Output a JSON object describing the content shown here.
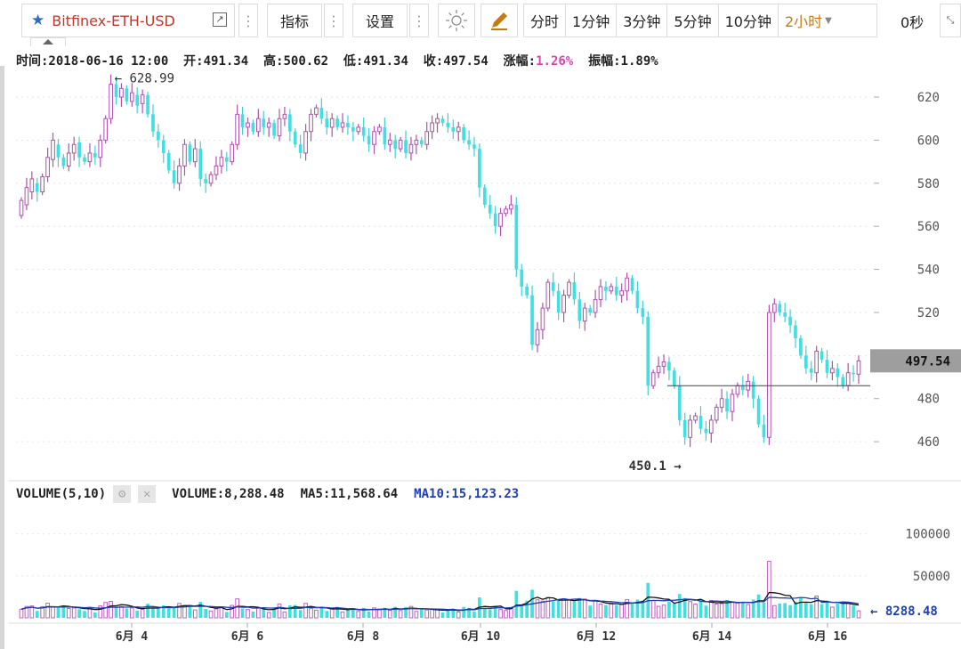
{
  "toolbar": {
    "symbol": "Bitfinex-ETH-USD",
    "indicators_label": "指标",
    "settings_label": "设置",
    "intervals": [
      "分时",
      "1分钟",
      "3分钟",
      "5分钟",
      "10分钟",
      "2小时"
    ],
    "countdown": "0秒"
  },
  "info": {
    "time": "时间:2018-06-16 12:00",
    "open": "开:491.34",
    "high": "高:500.62",
    "low": "低:491.34",
    "close": "收:497.54",
    "change_label": "涨幅:",
    "change_value": "1.26%",
    "amplitude": "振幅:1.89%"
  },
  "volume_info": {
    "label": "VOLUME(5,10)",
    "volume": "VOLUME:8,288.48",
    "ma5": "MA5:11,568.64",
    "ma10": "MA10:15,123.23"
  },
  "colors": {
    "up": "#e040b0",
    "down": "#40e0e0",
    "ma5": "#111111",
    "ma10": "#1f3fb8"
  },
  "chart_data": {
    "type": "candlestick",
    "price_axis": {
      "ticks": [
        460,
        480,
        500,
        520,
        540,
        560,
        580,
        600,
        620
      ],
      "range": [
        446,
        632
      ]
    },
    "volume_axis": {
      "ticks": [
        50000,
        100000
      ],
      "range": [
        0,
        140000
      ]
    },
    "x_ticks": [
      "6月 4",
      "6月 6",
      "6月 8",
      "6月 10",
      "6月 12",
      "6月 14",
      "6月 16"
    ],
    "annotations": {
      "high_label": "← 628.99",
      "high_value": 628.99,
      "low_label": "450.1 →",
      "low_value": 450.1
    },
    "last_price_label": "497.54",
    "last_price": 497.54,
    "last_volume_label": "← 8288.48",
    "last_volume": 8288.48,
    "candles": [
      [
        565,
        572
      ],
      [
        570,
        578
      ],
      [
        576,
        582
      ],
      [
        580,
        576
      ],
      [
        576,
        583
      ],
      [
        583,
        592
      ],
      [
        591,
        600
      ],
      [
        598,
        592
      ],
      [
        592,
        588
      ],
      [
        588,
        594
      ],
      [
        594,
        598
      ],
      [
        599,
        592
      ],
      [
        592,
        590
      ],
      [
        590,
        594
      ],
      [
        594,
        592
      ],
      [
        592,
        600
      ],
      [
        600,
        610
      ],
      [
        610,
        626
      ],
      [
        626,
        620
      ],
      [
        620,
        624
      ],
      [
        624,
        618
      ],
      [
        618,
        622
      ],
      [
        621,
        616
      ],
      [
        617,
        621
      ],
      [
        621,
        612
      ],
      [
        612,
        604
      ],
      [
        604,
        600
      ],
      [
        600,
        594
      ],
      [
        594,
        586
      ],
      [
        586,
        580
      ],
      [
        580,
        588
      ],
      [
        588,
        598
      ],
      [
        598,
        590
      ],
      [
        590,
        596
      ],
      [
        596,
        582
      ],
      [
        582,
        580
      ],
      [
        580,
        584
      ],
      [
        584,
        588
      ],
      [
        588,
        592
      ],
      [
        592,
        590
      ],
      [
        590,
        598
      ],
      [
        598,
        612
      ],
      [
        612,
        606
      ],
      [
        606,
        608
      ],
      [
        608,
        604
      ],
      [
        604,
        610
      ],
      [
        610,
        606
      ],
      [
        606,
        608
      ],
      [
        608,
        602
      ],
      [
        602,
        610
      ],
      [
        610,
        612
      ],
      [
        612,
        604
      ],
      [
        604,
        598
      ],
      [
        598,
        594
      ],
      [
        594,
        604
      ],
      [
        604,
        612
      ],
      [
        612,
        615
      ],
      [
        615,
        610
      ],
      [
        610,
        606
      ],
      [
        606,
        610
      ],
      [
        610,
        606
      ],
      [
        606,
        608
      ],
      [
        608,
        606
      ],
      [
        606,
        604
      ],
      [
        604,
        606
      ],
      [
        606,
        602
      ],
      [
        602,
        598
      ],
      [
        598,
        604
      ],
      [
        604,
        606
      ],
      [
        606,
        598
      ],
      [
        598,
        600
      ],
      [
        600,
        596
      ],
      [
        596,
        600
      ],
      [
        600,
        594
      ],
      [
        594,
        598
      ],
      [
        598,
        600
      ],
      [
        600,
        598
      ],
      [
        598,
        604
      ],
      [
        604,
        608
      ],
      [
        608,
        610
      ],
      [
        610,
        608
      ],
      [
        608,
        606
      ],
      [
        606,
        604
      ],
      [
        604,
        606
      ],
      [
        606,
        600
      ],
      [
        600,
        598
      ],
      [
        598,
        596
      ],
      [
        596,
        578
      ],
      [
        578,
        570
      ],
      [
        570,
        566
      ],
      [
        566,
        560
      ],
      [
        560,
        566
      ],
      [
        566,
        568
      ],
      [
        568,
        570
      ],
      [
        570,
        540
      ],
      [
        540,
        532
      ],
      [
        532,
        528
      ],
      [
        528,
        505
      ],
      [
        505,
        512
      ],
      [
        512,
        522
      ],
      [
        522,
        534
      ],
      [
        534,
        530
      ],
      [
        530,
        520
      ],
      [
        520,
        528
      ],
      [
        528,
        534
      ],
      [
        534,
        526
      ],
      [
        526,
        516
      ],
      [
        516,
        522
      ],
      [
        522,
        520
      ],
      [
        520,
        526
      ],
      [
        526,
        532
      ],
      [
        532,
        530
      ],
      [
        530,
        532
      ],
      [
        532,
        528
      ],
      [
        528,
        530
      ],
      [
        530,
        536
      ],
      [
        536,
        530
      ],
      [
        530,
        522
      ],
      [
        522,
        518
      ],
      [
        518,
        486
      ],
      [
        486,
        492
      ],
      [
        492,
        495
      ],
      [
        495,
        497
      ],
      [
        497,
        493
      ],
      [
        493,
        486
      ],
      [
        486,
        470
      ],
      [
        470,
        462
      ],
      [
        462,
        470
      ],
      [
        470,
        472
      ],
      [
        472,
        466
      ],
      [
        466,
        464
      ],
      [
        464,
        470
      ],
      [
        470,
        476
      ],
      [
        476,
        480
      ],
      [
        480,
        474
      ],
      [
        474,
        482
      ],
      [
        482,
        486
      ],
      [
        486,
        484
      ],
      [
        484,
        488
      ],
      [
        488,
        480
      ],
      [
        480,
        468
      ],
      [
        468,
        462
      ],
      [
        462,
        520
      ],
      [
        520,
        524
      ],
      [
        524,
        520
      ],
      [
        520,
        518
      ],
      [
        518,
        514
      ],
      [
        514,
        508
      ],
      [
        508,
        500
      ],
      [
        500,
        494
      ],
      [
        494,
        492
      ],
      [
        492,
        502
      ],
      [
        502,
        498
      ],
      [
        498,
        492
      ],
      [
        492,
        494
      ],
      [
        494,
        490
      ],
      [
        490,
        486
      ],
      [
        486,
        492
      ],
      [
        492,
        491.34
      ],
      [
        491.34,
        497.54
      ]
    ]
  }
}
